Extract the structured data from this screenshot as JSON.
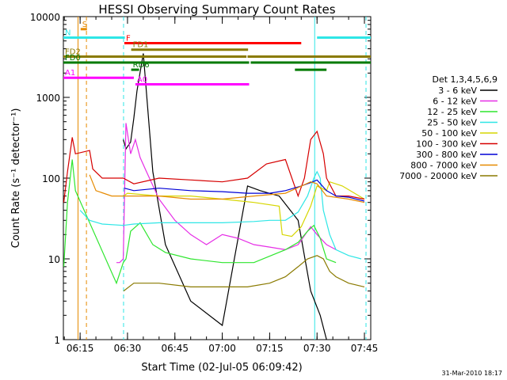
{
  "chart_data": {
    "type": "line",
    "title": "HESSI Observing Summary Count Rates",
    "xlabel": "Start Time (02-Jul-05 06:09:42)",
    "ylabel": "Count Rate (s⁻¹ detector⁻¹)",
    "yscale": "log",
    "ylim": [
      1,
      10000
    ],
    "xlim": [
      "06:09:42",
      "07:47:00"
    ],
    "x_ticks": [
      "06:15",
      "06:30",
      "06:45",
      "07:00",
      "07:15",
      "07:30",
      "07:45"
    ],
    "y_ticks": [
      "1",
      "10",
      "100",
      "1000",
      "10000"
    ],
    "footer": "31-Mar-2010 18:17",
    "legend": {
      "title": "Det 1,3,4,5,6,9",
      "position": "right",
      "entries": [
        {
          "label": "3 - 6 keV",
          "color": "#000000"
        },
        {
          "label": "6 - 12 keV",
          "color": "#e62ee6"
        },
        {
          "label": "12 - 25 keV",
          "color": "#2ee62e"
        },
        {
          "label": "25 - 50 keV",
          "color": "#2ee6e6"
        },
        {
          "label": "50 - 100 keV",
          "color": "#d6d600"
        },
        {
          "label": "100 - 300 keV",
          "color": "#d60000"
        },
        {
          "label": "300 - 800 keV",
          "color": "#0000d6"
        },
        {
          "label": "800 - 7000 keV",
          "color": "#e68a00"
        },
        {
          "label": "7000 - 20000 keV",
          "color": "#8a7a00"
        }
      ]
    },
    "flags": [
      {
        "label": "S",
        "color": "#e68a00",
        "y": 7000,
        "segments": [
          [
            "06:15:10",
            "06:17:10"
          ]
        ]
      },
      {
        "label": "N",
        "color": "#2ee6e6",
        "y": 5500,
        "segments": [
          [
            "06:09:42",
            "06:29:10"
          ],
          [
            "07:30:00",
            "07:47:00"
          ]
        ]
      },
      {
        "label": "F",
        "color": "#ff0000",
        "y": 4700,
        "segments": [
          [
            "06:29:00",
            "07:25:00"
          ]
        ]
      },
      {
        "label": "FD1",
        "color": "#8a7a00",
        "y": 3900,
        "segments": [
          [
            "06:31:10",
            "07:08:10"
          ]
        ]
      },
      {
        "label": "FD2",
        "color": "#8a7a00",
        "y": 3200,
        "segments": [
          [
            "06:09:42",
            "07:07:40"
          ],
          [
            "07:08:00",
            "07:47:00"
          ]
        ]
      },
      {
        "label": "FD0",
        "color": "#007a00",
        "y": 2700,
        "segments": [
          [
            "06:09:42",
            "07:08:30"
          ],
          [
            "07:09:00",
            "07:47:00"
          ]
        ]
      },
      {
        "label": "RD6",
        "color": "#007a00",
        "y": 2200,
        "segments": [
          [
            "06:31:10",
            "06:33:40"
          ],
          [
            "07:23:00",
            "07:33:00"
          ]
        ]
      },
      {
        "label": "A1",
        "color": "#ff00ff",
        "y": 1750,
        "segments": [
          [
            "06:09:42",
            "06:32:00"
          ]
        ]
      },
      {
        "label": "A0",
        "color": "#ff00ff",
        "y": 1450,
        "segments": [
          [
            "06:32:30",
            "07:08:30"
          ]
        ]
      }
    ],
    "vertical_lines": [
      {
        "x": "06:14:20",
        "color": "#e68a00",
        "style": "solid"
      },
      {
        "x": "06:17:00",
        "color": "#e68a00",
        "style": "dashed"
      },
      {
        "x": "06:28:45",
        "color": "#2ee6e6",
        "style": "dashed"
      },
      {
        "x": "07:29:15",
        "color": "#2ee6e6",
        "style": "solid"
      },
      {
        "x": "07:45:30",
        "color": "#2ee6e6",
        "style": "dashed"
      }
    ],
    "series": [
      {
        "name": "3 - 6 keV",
        "color": "#000000",
        "x": [
          "06:28:40",
          "06:29:30",
          "06:31:00",
          "06:32:00",
          "06:33:00",
          "06:35:00",
          "06:38:00",
          "06:42:00",
          "06:50:00",
          "07:00:00",
          "07:08:00",
          "07:12:00",
          "07:18:00",
          "07:24:00",
          "07:28:00",
          "07:31:00",
          "07:33:00"
        ],
        "y": [
          300,
          230,
          280,
          550,
          1200,
          3500,
          120,
          15,
          3,
          1.5,
          80,
          70,
          60,
          30,
          4,
          2,
          1
        ]
      },
      {
        "name": "6 - 12 keV",
        "color": "#e62ee6",
        "x": [
          "06:26:30",
          "06:27:30",
          "06:28:40",
          "06:29:30",
          "06:31:00",
          "06:32:30",
          "06:34:00",
          "06:36:00",
          "06:40:00",
          "06:45:00",
          "06:50:00",
          "06:55:00",
          "07:00:00",
          "07:05:00",
          "07:10:00",
          "07:15:00",
          "07:20:00",
          "07:24:00",
          "07:28:00",
          "07:30:00",
          "07:33:00",
          "07:36:00"
        ],
        "y": [
          9,
          9,
          10,
          480,
          200,
          300,
          180,
          120,
          55,
          30,
          20,
          15,
          20,
          18,
          15,
          14,
          13,
          15,
          25,
          20,
          15,
          13
        ]
      },
      {
        "name": "12 - 25 keV",
        "color": "#2ee62e",
        "x": [
          "06:09:50",
          "06:11:00",
          "06:12:30",
          "06:13:30",
          "06:26:30",
          "06:28:40",
          "06:29:30",
          "06:31:00",
          "06:34:00",
          "06:38:00",
          "06:42:00",
          "06:50:00",
          "07:00:00",
          "07:10:00",
          "07:20:00",
          "07:24:00",
          "07:27:00",
          "07:29:00",
          "07:31:00",
          "07:33:00",
          "07:36:00"
        ],
        "y": [
          8,
          50,
          170,
          70,
          5,
          9,
          10,
          22,
          28,
          15,
          12,
          10,
          9,
          9,
          13,
          16,
          22,
          26,
          18,
          10,
          9
        ]
      },
      {
        "name": "25 - 50 keV",
        "color": "#2ee6e6",
        "x": [
          "06:15:00",
          "06:18:00",
          "06:22:00",
          "06:28:40",
          "06:32:00",
          "06:40:00",
          "06:50:00",
          "07:00:00",
          "07:10:00",
          "07:15:00",
          "07:20:00",
          "07:24:00",
          "07:27:00",
          "07:29:00",
          "07:30:00",
          "07:31:00",
          "07:32:00",
          "07:34:00",
          "07:36:00",
          "07:40:00",
          "07:44:00"
        ],
        "y": [
          40,
          30,
          27,
          26,
          27,
          28,
          28,
          28,
          29,
          30,
          30,
          38,
          60,
          100,
          120,
          100,
          40,
          20,
          13,
          11,
          10
        ]
      },
      {
        "name": "50 - 100 keV",
        "color": "#d6d600",
        "x": [
          "06:28:45",
          "06:30:00",
          "06:40:00",
          "06:50:00",
          "07:00:00",
          "07:10:00",
          "07:18:00",
          "07:19:00",
          "07:22:00",
          "07:25:00",
          "07:28:00",
          "07:30:00",
          "07:33:00",
          "07:34:00",
          "07:38:00",
          "07:45:00"
        ],
        "y": [
          60,
          65,
          60,
          60,
          55,
          50,
          45,
          20,
          19,
          25,
          45,
          80,
          70,
          90,
          80,
          55
        ]
      },
      {
        "name": "100 - 300 keV",
        "color": "#d60000",
        "x": [
          "06:09:50",
          "06:11:00",
          "06:12:30",
          "06:13:30",
          "06:18:00",
          "06:19:00",
          "06:22:00",
          "06:28:40",
          "06:32:00",
          "06:40:00",
          "06:50:00",
          "07:00:00",
          "07:08:00",
          "07:14:00",
          "07:20:00",
          "07:24:00",
          "07:26:00",
          "07:28:00",
          "07:30:00",
          "07:32:00",
          "07:33:00",
          "07:36:00",
          "07:40:00",
          "07:45:00"
        ],
        "y": [
          50,
          120,
          320,
          200,
          220,
          130,
          100,
          100,
          85,
          100,
          95,
          90,
          100,
          150,
          170,
          60,
          100,
          300,
          380,
          200,
          100,
          60,
          60,
          55
        ]
      },
      {
        "name": "300 - 800 keV",
        "color": "#0000d6",
        "x": [
          "06:29:00",
          "06:32:00",
          "06:40:00",
          "06:50:00",
          "07:00:00",
          "07:08:00",
          "07:15:00",
          "07:20:00",
          "07:25:00",
          "07:28:00",
          "07:30:00",
          "07:33:00",
          "07:36:00",
          "07:40:00",
          "07:45:00"
        ],
        "y": [
          75,
          70,
          75,
          70,
          68,
          65,
          65,
          70,
          80,
          88,
          95,
          70,
          60,
          58,
          52
        ]
      },
      {
        "name": "800 - 7000 keV",
        "color": "#e68a00",
        "x": [
          "06:18:00",
          "06:20:00",
          "06:25:00",
          "06:30:00",
          "06:40:00",
          "06:50:00",
          "07:00:00",
          "07:10:00",
          "07:20:00",
          "07:28:00",
          "07:30:00",
          "07:33:00",
          "07:40:00",
          "07:45:00"
        ],
        "y": [
          110,
          70,
          60,
          60,
          60,
          55,
          55,
          60,
          65,
          90,
          85,
          60,
          55,
          50
        ]
      },
      {
        "name": "7000 - 20000 keV",
        "color": "#8a7a00",
        "x": [
          "06:28:45",
          "06:32:00",
          "06:40:00",
          "06:50:00",
          "07:00:00",
          "07:08:00",
          "07:15:00",
          "07:20:00",
          "07:24:00",
          "07:27:00",
          "07:30:00",
          "07:32:00",
          "07:34:00",
          "07:36:00",
          "07:40:00",
          "07:45:00"
        ],
        "y": [
          4,
          5,
          5,
          4.5,
          4.5,
          4.5,
          5,
          6,
          8,
          10,
          11,
          10,
          7,
          6,
          5,
          4.5
        ]
      }
    ]
  }
}
